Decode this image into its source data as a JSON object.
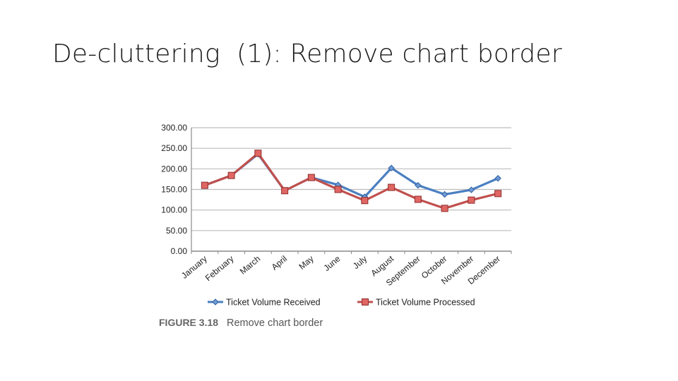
{
  "slide": {
    "title": "De-cluttering  (1): Remove chart border"
  },
  "figure": {
    "label": "FIGURE 3.18",
    "caption": "Remove chart border"
  },
  "colors": {
    "received": "#4a7fc1",
    "processed": "#c0504d",
    "grid": "#bdbdbd"
  },
  "chart_data": {
    "type": "line",
    "categories": [
      "January",
      "February",
      "March",
      "April",
      "May",
      "June",
      "July",
      "August",
      "September",
      "October",
      "November",
      "December"
    ],
    "series": [
      {
        "name": "Ticket Volume Received",
        "marker": "diamond",
        "values": [
          160,
          184,
          236,
          147,
          179,
          161,
          132,
          202,
          160,
          138,
          149,
          177
        ]
      },
      {
        "name": "Ticket Volume Processed",
        "marker": "square",
        "values": [
          160,
          184,
          238,
          147,
          179,
          150,
          123,
          155,
          126,
          104,
          124,
          140
        ]
      }
    ],
    "yticks": [
      "0.00",
      "50.00",
      "100.00",
      "150.00",
      "200.00",
      "250.00",
      "300.00"
    ],
    "ylim": [
      0,
      300
    ],
    "grid": true,
    "legend": "bottom",
    "border": false
  }
}
